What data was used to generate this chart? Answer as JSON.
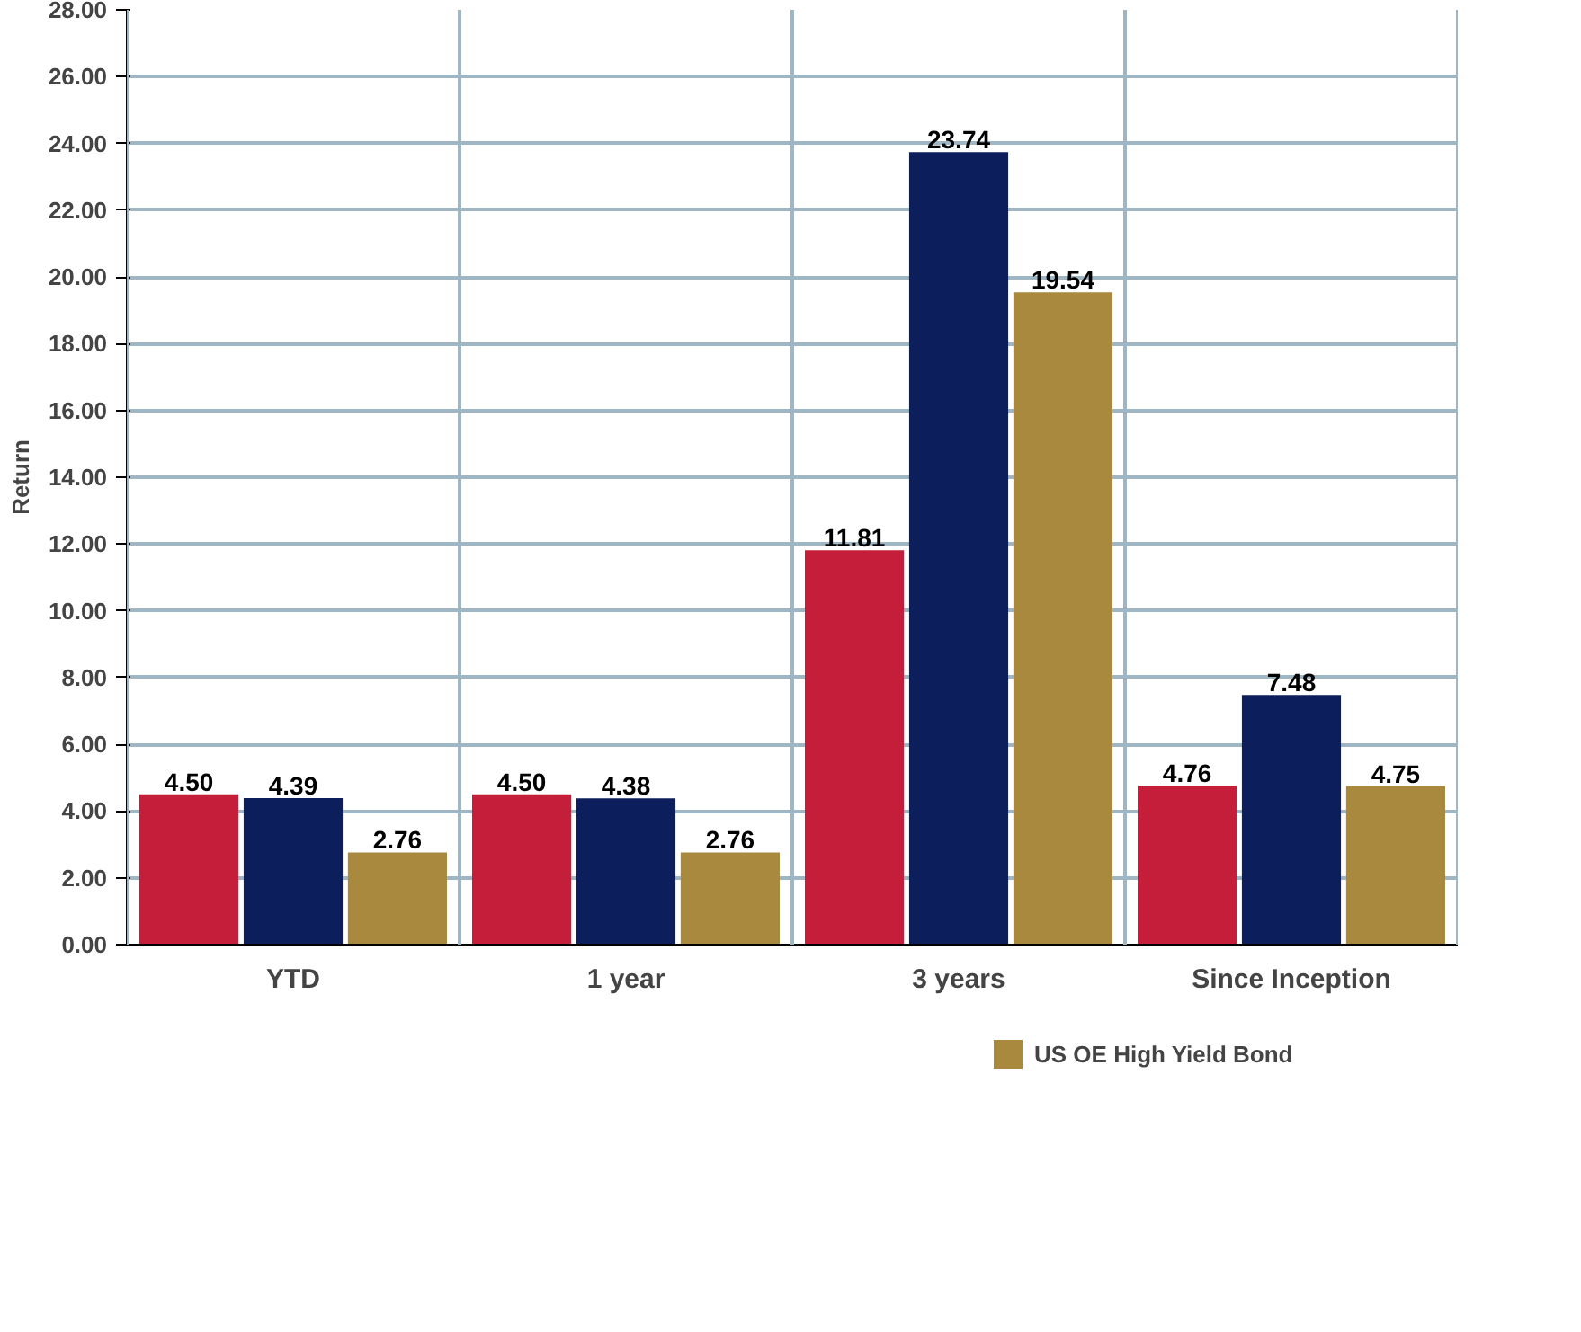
{
  "chart_data": {
    "type": "bar",
    "ylabel": "Return",
    "categories": [
      "YTD",
      "1 year",
      "3 years",
      "Since Inception"
    ],
    "series": [
      {
        "color": "#c41e3a",
        "values": [
          4.5,
          4.5,
          11.81,
          4.76
        ],
        "value_labels": [
          "4.50",
          "4.50",
          "11.81",
          "4.76"
        ]
      },
      {
        "color": "#0c1f5c",
        "values": [
          4.39,
          4.38,
          23.74,
          7.48
        ],
        "value_labels": [
          "4.39",
          "4.38",
          "23.74",
          "7.48"
        ]
      },
      {
        "name": "US OE High Yield Bond",
        "color": "#a8893e",
        "values": [
          2.76,
          2.76,
          19.54,
          4.75
        ],
        "value_labels": [
          "2.76",
          "2.76",
          "19.54",
          "4.75"
        ]
      }
    ],
    "ylim": [
      0,
      28
    ],
    "yticks": [
      {
        "value": 0,
        "label": "0.00"
      },
      {
        "value": 2,
        "label": "2.00"
      },
      {
        "value": 4,
        "label": "4.00"
      },
      {
        "value": 6,
        "label": "6.00"
      },
      {
        "value": 8,
        "label": "8.00"
      },
      {
        "value": 10,
        "label": "10.00"
      },
      {
        "value": 12,
        "label": "12.00"
      },
      {
        "value": 14,
        "label": "14.00"
      },
      {
        "value": 16,
        "label": "16.00"
      },
      {
        "value": 18,
        "label": "18.00"
      },
      {
        "value": 20,
        "label": "20.00"
      },
      {
        "value": 22,
        "label": "22.00"
      },
      {
        "value": 24,
        "label": "24.00"
      },
      {
        "value": 26,
        "label": "26.00"
      },
      {
        "value": 28,
        "label": "28.00"
      }
    ],
    "grid": true,
    "legend": "bottom"
  }
}
